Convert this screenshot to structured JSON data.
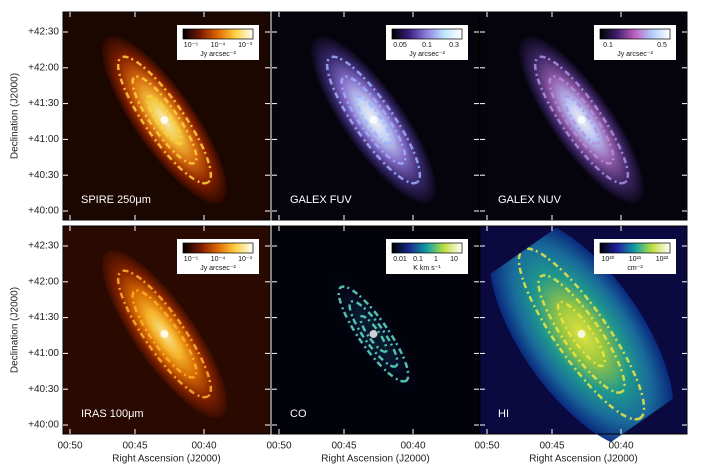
{
  "axes": {
    "y_label": "Declination (J2000)",
    "x_label": "Right Ascension (J2000)",
    "y_ticks": [
      "+42:30",
      "+42:00",
      "+41:30",
      "+41:00",
      "+40:30",
      "+40:00"
    ],
    "x_ticks": [
      "00:50",
      "00:45",
      "00:40"
    ]
  },
  "panels": [
    {
      "label": "SPIRE 250μm",
      "colorbar": {
        "ticks": [
          "10⁻⁵",
          "10⁻⁴",
          "10⁻³"
        ],
        "unit": "Jy arcsec⁻²"
      }
    },
    {
      "label": "GALEX FUV",
      "colorbar": {
        "ticks": [
          "0.05",
          "0.1",
          "0.3"
        ],
        "unit": "Jy arcsec⁻²"
      }
    },
    {
      "label": "GALEX NUV",
      "colorbar": {
        "ticks": [
          "0.1",
          "0.5"
        ],
        "unit": "Jy arcsec⁻²"
      }
    },
    {
      "label": "IRAS 100μm",
      "colorbar": {
        "ticks": [
          "10⁻⁵",
          "10⁻⁴",
          "10⁻³"
        ],
        "unit": "Jy arcsec⁻²"
      }
    },
    {
      "label": "CO",
      "colorbar": {
        "ticks": [
          "0.01",
          "0.1",
          "1",
          "10"
        ],
        "unit": "K km s⁻¹"
      }
    },
    {
      "label": "HI",
      "colorbar": {
        "ticks": [
          "10²⁰",
          "10²¹",
          "10²²"
        ],
        "unit": "cm⁻²"
      }
    }
  ]
}
